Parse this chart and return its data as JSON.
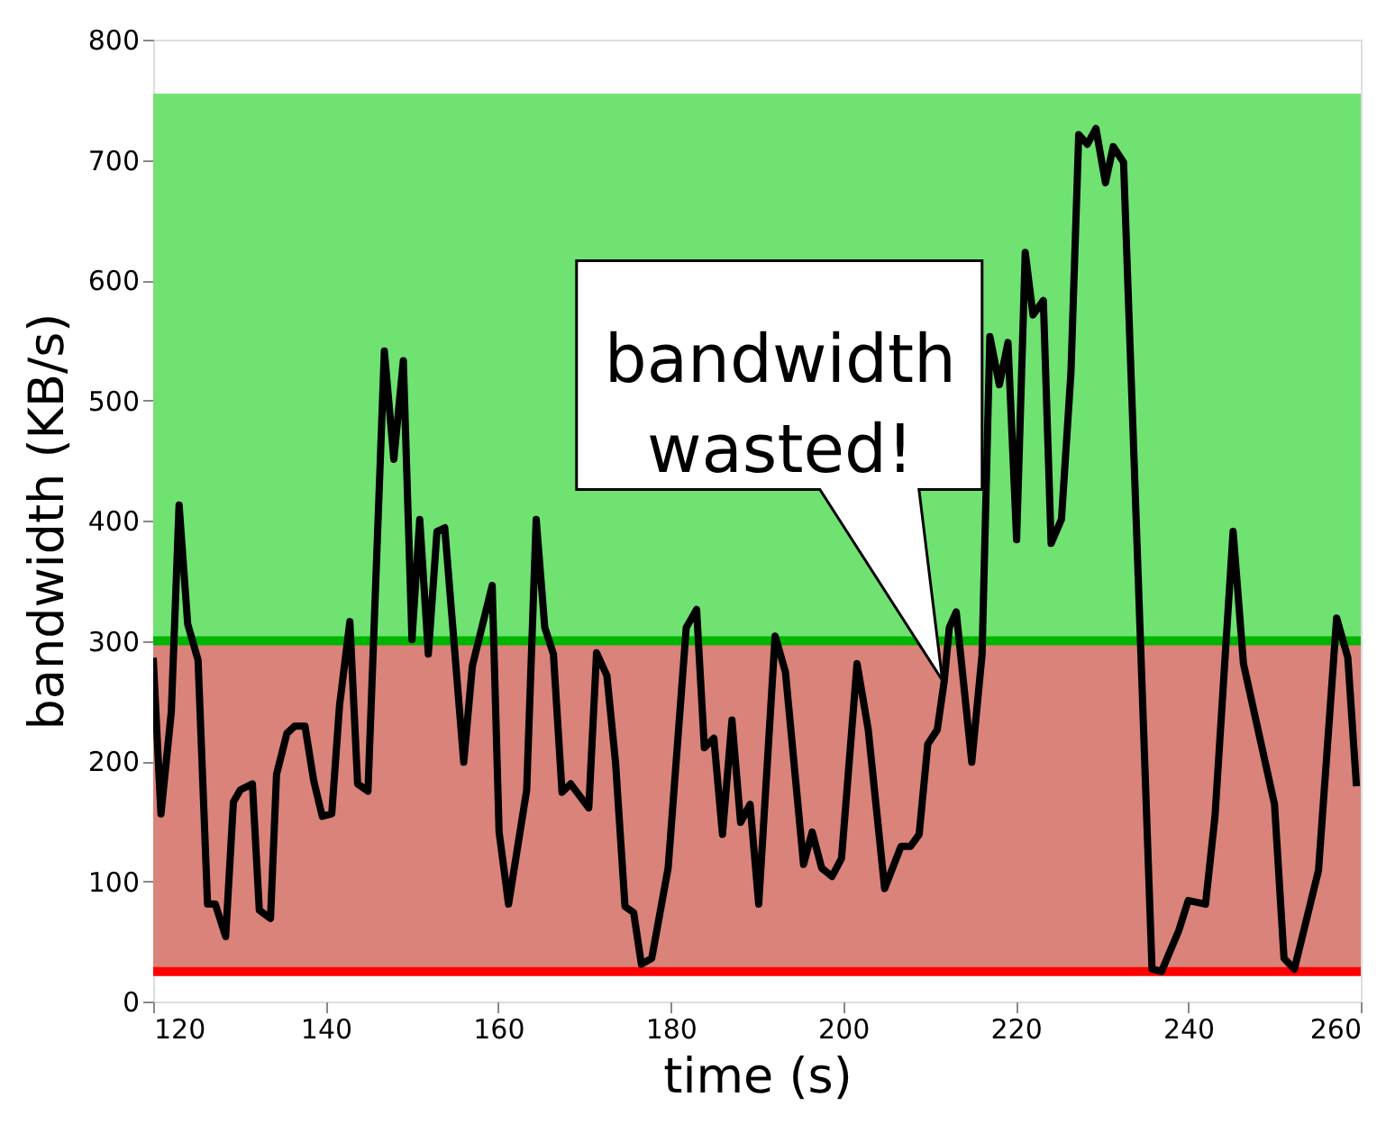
{
  "chart_data": {
    "type": "line",
    "xlabel": "time (s)",
    "ylabel": "bandwidth (KB/s)",
    "xlim": [
      120,
      260
    ],
    "ylim": [
      0,
      800
    ],
    "xticks": [
      120,
      140,
      160,
      180,
      200,
      220,
      240,
      260
    ],
    "yticks": [
      0,
      100,
      200,
      300,
      400,
      500,
      600,
      700,
      800
    ],
    "grid": false,
    "marker": "none",
    "line_style": "solid",
    "x": [
      120,
      120.9,
      122.1,
      123,
      124,
      125.2,
      126.3,
      127.2,
      128.4,
      129.3,
      130.1,
      131.5,
      132.3,
      133.6,
      134.3,
      135.5,
      136.4,
      137.6,
      138.6,
      139.6,
      140.7,
      141.6,
      142.8,
      143.7,
      144.9,
      146.8,
      147.9,
      149,
      150,
      150.9,
      151.9,
      152.9,
      153.8,
      156,
      157,
      159.3,
      160.1,
      161.2,
      163.3,
      164.4,
      165.4,
      166.4,
      167.4,
      168.4,
      170.5,
      171.4,
      172.6,
      173.6,
      174.7,
      175.7,
      176.6,
      177.8,
      179.7,
      181.8,
      183,
      183.9,
      185,
      186,
      187.1,
      188.1,
      189.2,
      190.2,
      192.1,
      193.3,
      195.4,
      196.4,
      197.5,
      198.7,
      199.8,
      201.6,
      202.9,
      204.8,
      206.7,
      207.8,
      208.8,
      209.8,
      210.9,
      211.7,
      212.3,
      213.1,
      214.9,
      216.1,
      217,
      218.1,
      219.1,
      220.1,
      221.1,
      222,
      223.2,
      224.1,
      225.3,
      226.4,
      227.3,
      228.3,
      229.3,
      230.4,
      231.3,
      232.5,
      235.8,
      236.9,
      238.9,
      240,
      242,
      243.1,
      245.2,
      246.4,
      250,
      251.1,
      252.3,
      255.1,
      257.2,
      258.5,
      259.5
    ],
    "series": [
      {
        "color": "#000000",
        "values": [
          286,
          156,
          241,
          413,
          314,
          284,
          81,
          81,
          54,
          166,
          176,
          181,
          76,
          69,
          189,
          223,
          229,
          229,
          184,
          154,
          156,
          246,
          316,
          181,
          175,
          541,
          451,
          533,
          301,
          401,
          289,
          391,
          394,
          199,
          279,
          346,
          141,
          81,
          176,
          401,
          311,
          289,
          174,
          181,
          161,
          290,
          271,
          199,
          79,
          74,
          31,
          36,
          111,
          311,
          326,
          211,
          219,
          139,
          234,
          149,
          164,
          81,
          304,
          274,
          114,
          141,
          111,
          104,
          119,
          281,
          226,
          94,
          129,
          129,
          139,
          214,
          226,
          266,
          311,
          324,
          199,
          289,
          553,
          513,
          548,
          384,
          623,
          571,
          583,
          381,
          401,
          523,
          721,
          713,
          726,
          681,
          711,
          698,
          27,
          25,
          59,
          84,
          81,
          154,
          391,
          281,
          164,
          36,
          27,
          109,
          319,
          286,
          179
        ]
      }
    ],
    "bands": [
      {
        "axis": "y",
        "from": 25,
        "to": 300,
        "color": "#d9837a"
      },
      {
        "axis": "y",
        "from": 300,
        "to": 755,
        "color": "#6fe272"
      }
    ],
    "ref_lines": [
      {
        "axis": "y",
        "value": 300,
        "color": "#00b400",
        "line_style": "solid"
      },
      {
        "axis": "y",
        "value": 25,
        "color": "#ff0000",
        "line_style": "solid"
      }
    ],
    "annotations": [
      {
        "text": "bandwidth\nwasted!",
        "x": 211.5,
        "y": 267
      }
    ]
  }
}
